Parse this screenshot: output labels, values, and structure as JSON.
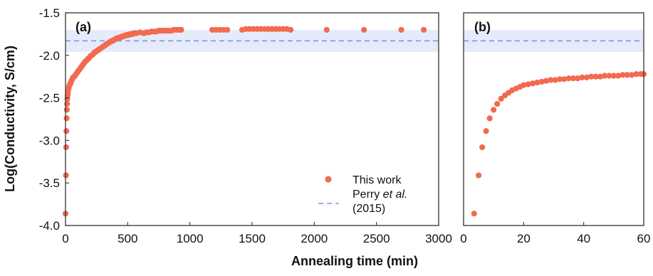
{
  "chart_data": [
    {
      "type": "scatter",
      "panel_label": "(a)",
      "xlabel": "Annealing time (min)",
      "ylabel": "Log(Conductivity, S/cm)",
      "xlim": [
        0,
        3000
      ],
      "ylim": [
        -4.0,
        -1.5
      ],
      "xticks": [
        0,
        500,
        1000,
        1500,
        2000,
        2500,
        3000
      ],
      "xtick_labels": [
        "0",
        "500",
        "1000",
        "1500",
        "2000",
        "2500",
        "3000"
      ],
      "yticks": [
        -4.0,
        -3.5,
        -3.0,
        -2.5,
        -2.0,
        -1.5
      ],
      "ytick_labels": [
        "-4.0",
        "-3.5",
        "-3.0",
        "-2.5",
        "-2.0",
        "-1.5"
      ],
      "grid": false,
      "legend_position": "bottom-right",
      "colors": {
        "series": "#f26a4f",
        "reference_line": "#7f93d9",
        "reference_band": "#e6ebfb"
      },
      "reference": {
        "label_main": "Perry ",
        "label_italic": "et al.",
        "label_year": "(2015)",
        "value": -1.83,
        "band": [
          -1.96,
          -1.7
        ]
      },
      "series": [
        {
          "name": "This work",
          "points": [
            [
              0,
              -3.86
            ],
            [
              4,
              -3.41
            ],
            [
              5,
              -3.08
            ],
            [
              7,
              -2.89
            ],
            [
              9,
              -2.74
            ],
            [
              11,
              -2.64
            ],
            [
              13,
              -2.57
            ],
            [
              15,
              -2.51
            ],
            [
              17,
              -2.47
            ],
            [
              19,
              -2.44
            ],
            [
              21,
              -2.41
            ],
            [
              25,
              -2.39
            ],
            [
              30,
              -2.36
            ],
            [
              35,
              -2.34
            ],
            [
              40,
              -2.33
            ],
            [
              45,
              -2.31
            ],
            [
              50,
              -2.29
            ],
            [
              55,
              -2.28
            ],
            [
              60,
              -2.26
            ],
            [
              70,
              -2.25
            ],
            [
              80,
              -2.23
            ],
            [
              90,
              -2.21
            ],
            [
              100,
              -2.19
            ],
            [
              110,
              -2.17
            ],
            [
              120,
              -2.15
            ],
            [
              130,
              -2.13
            ],
            [
              140,
              -2.11
            ],
            [
              150,
              -2.09
            ],
            [
              160,
              -2.07
            ],
            [
              170,
              -2.06
            ],
            [
              180,
              -2.04
            ],
            [
              190,
              -2.03
            ],
            [
              200,
              -2.01
            ],
            [
              210,
              -2.0
            ],
            [
              220,
              -1.99
            ],
            [
              230,
              -1.97
            ],
            [
              240,
              -1.96
            ],
            [
              250,
              -1.95
            ],
            [
              260,
              -1.94
            ],
            [
              270,
              -1.93
            ],
            [
              280,
              -1.92
            ],
            [
              290,
              -1.91
            ],
            [
              300,
              -1.9
            ],
            [
              310,
              -1.89
            ],
            [
              320,
              -1.88
            ],
            [
              330,
              -1.87
            ],
            [
              340,
              -1.86
            ],
            [
              350,
              -1.85
            ],
            [
              360,
              -1.84
            ],
            [
              370,
              -1.83
            ],
            [
              380,
              -1.83
            ],
            [
              390,
              -1.82
            ],
            [
              400,
              -1.81
            ],
            [
              410,
              -1.8
            ],
            [
              420,
              -1.8
            ],
            [
              430,
              -1.79
            ],
            [
              440,
              -1.79
            ],
            [
              450,
              -1.78
            ],
            [
              460,
              -1.78
            ],
            [
              470,
              -1.77
            ],
            [
              480,
              -1.77
            ],
            [
              490,
              -1.76
            ],
            [
              500,
              -1.76
            ],
            [
              510,
              -1.76
            ],
            [
              520,
              -1.75
            ],
            [
              530,
              -1.75
            ],
            [
              540,
              -1.75
            ],
            [
              550,
              -1.74
            ],
            [
              560,
              -1.74
            ],
            [
              570,
              -1.74
            ],
            [
              600,
              -1.73
            ],
            [
              630,
              -1.74
            ],
            [
              650,
              -1.73
            ],
            [
              670,
              -1.73
            ],
            [
              690,
              -1.72
            ],
            [
              710,
              -1.72
            ],
            [
              730,
              -1.72
            ],
            [
              750,
              -1.71
            ],
            [
              770,
              -1.71
            ],
            [
              790,
              -1.71
            ],
            [
              810,
              -1.71
            ],
            [
              830,
              -1.71
            ],
            [
              850,
              -1.71
            ],
            [
              870,
              -1.7
            ],
            [
              890,
              -1.7
            ],
            [
              910,
              -1.7
            ],
            [
              930,
              -1.7
            ],
            [
              1180,
              -1.7
            ],
            [
              1210,
              -1.7
            ],
            [
              1240,
              -1.7
            ],
            [
              1270,
              -1.7
            ],
            [
              1300,
              -1.7
            ],
            [
              1420,
              -1.7
            ],
            [
              1450,
              -1.69
            ],
            [
              1480,
              -1.69
            ],
            [
              1510,
              -1.69
            ],
            [
              1540,
              -1.69
            ],
            [
              1570,
              -1.69
            ],
            [
              1600,
              -1.69
            ],
            [
              1630,
              -1.69
            ],
            [
              1660,
              -1.69
            ],
            [
              1690,
              -1.69
            ],
            [
              1720,
              -1.69
            ],
            [
              1750,
              -1.69
            ],
            [
              1780,
              -1.69
            ],
            [
              1810,
              -1.7
            ],
            [
              2100,
              -1.7
            ],
            [
              2400,
              -1.7
            ],
            [
              2700,
              -1.7
            ],
            [
              2880,
              -1.7
            ]
          ]
        }
      ]
    },
    {
      "type": "scatter",
      "panel_label": "(b)",
      "xlabel": "Annealing time (min)",
      "xlim": [
        0,
        60
      ],
      "ylim": [
        -4.0,
        -1.5
      ],
      "xticks": [
        0,
        20,
        40,
        60
      ],
      "xtick_labels": [
        "0",
        "20",
        "40",
        "60"
      ],
      "grid": false,
      "colors": {
        "series": "#f26a4f",
        "reference_line": "#7f93d9",
        "reference_band": "#e6ebfb"
      },
      "reference": {
        "value": -1.83,
        "band": [
          -1.96,
          -1.7
        ]
      },
      "series": [
        {
          "name": "This work",
          "points": [
            [
              3.5,
              -3.86
            ],
            [
              5,
              -3.41
            ],
            [
              6.2,
              -3.08
            ],
            [
              7.5,
              -2.89
            ],
            [
              8.7,
              -2.74
            ],
            [
              10,
              -2.64
            ],
            [
              11.2,
              -2.57
            ],
            [
              12.5,
              -2.51
            ],
            [
              13.8,
              -2.47
            ],
            [
              15,
              -2.44
            ],
            [
              16.2,
              -2.41
            ],
            [
              17.5,
              -2.39
            ],
            [
              18.8,
              -2.37
            ],
            [
              20,
              -2.35
            ],
            [
              21.5,
              -2.34
            ],
            [
              23,
              -2.33
            ],
            [
              24.5,
              -2.32
            ],
            [
              26,
              -2.31
            ],
            [
              27.5,
              -2.3
            ],
            [
              29,
              -2.29
            ],
            [
              30.5,
              -2.29
            ],
            [
              32,
              -2.28
            ],
            [
              33.5,
              -2.28
            ],
            [
              35,
              -2.27
            ],
            [
              36.5,
              -2.27
            ],
            [
              38,
              -2.27
            ],
            [
              39.5,
              -2.26
            ],
            [
              41,
              -2.26
            ],
            [
              42.5,
              -2.25
            ],
            [
              44,
              -2.25
            ],
            [
              45.5,
              -2.25
            ],
            [
              47,
              -2.24
            ],
            [
              48.5,
              -2.24
            ],
            [
              50,
              -2.24
            ],
            [
              51.5,
              -2.24
            ],
            [
              53,
              -2.23
            ],
            [
              54.5,
              -2.23
            ],
            [
              56,
              -2.23
            ],
            [
              57.5,
              -2.22
            ],
            [
              59,
              -2.22
            ],
            [
              60,
              -2.22
            ]
          ]
        }
      ]
    }
  ]
}
